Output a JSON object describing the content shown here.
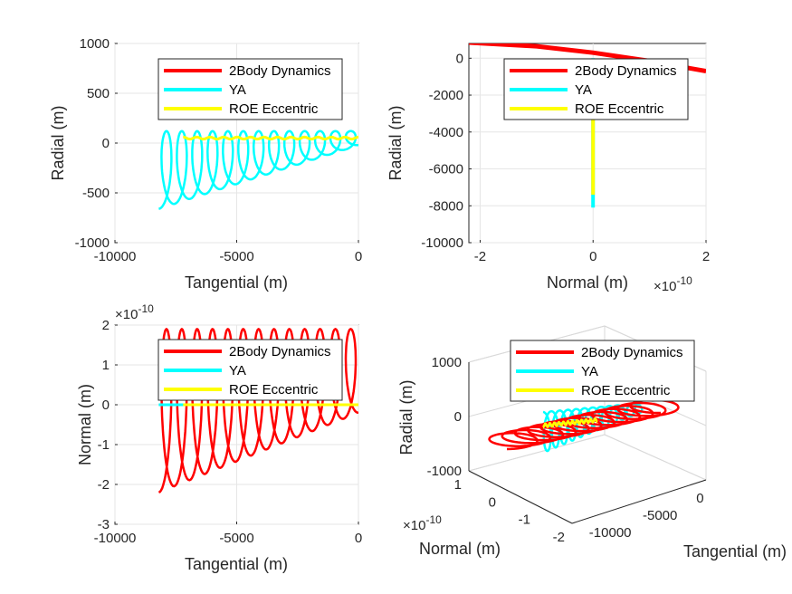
{
  "legend_entries": [
    {
      "name": "2Body Dynamics",
      "color": "#ff0000"
    },
    {
      "name": "YA",
      "color": "#00ffff"
    },
    {
      "name": "ROE Eccentric",
      "color": "#ffff00"
    }
  ],
  "chart_data": [
    {
      "type": "line",
      "panel": "top-left",
      "xlabel": "Tangential (m)",
      "ylabel": "Radial (m)",
      "xlim": [
        -10000,
        0
      ],
      "ylim": [
        -1000,
        1000
      ],
      "xticks": [
        -10000,
        -5000,
        0
      ],
      "xtick_labels": [
        "-10000",
        "-5000",
        "0"
      ],
      "yticks": [
        -1000,
        -500,
        0,
        500,
        1000
      ],
      "ytick_labels": [
        "-1000",
        "-500",
        "0",
        "500",
        "1000"
      ],
      "grid": true,
      "legend_placement": "top-right",
      "series": [
        {
          "name": "YA",
          "x_start": -8200,
          "x_end": 0,
          "loops": 13,
          "trough_start": -660,
          "trough_end": -20,
          "crest": 120
        },
        {
          "name": "ROE Eccentric",
          "x_start": -7200,
          "x_end": 0,
          "loops": 13,
          "y_center": 50,
          "y_amplitude": 10
        }
      ]
    },
    {
      "type": "line",
      "panel": "top-right",
      "xlabel": "Normal (m)",
      "ylabel": "Radial (m)",
      "xlim": [
        -2.2e-10,
        2e-10
      ],
      "ylim": [
        -10000,
        800
      ],
      "x_exponent_label": "×10",
      "x_exponent": "-10",
      "xticks": [
        -2,
        0,
        2
      ],
      "xtick_labels": [
        "-2",
        "0",
        "2"
      ],
      "yticks": [
        -10000,
        -8000,
        -6000,
        -4000,
        -2000,
        0
      ],
      "ytick_labels": [
        "-10000",
        "-8000",
        "-6000",
        "-4000",
        "-2000",
        "0"
      ],
      "grid": true,
      "legend_placement": "top-right",
      "series": [
        {
          "name": "2Body Dynamics",
          "x": [
            -2.2e-10,
            -1e-10,
            0,
            1e-10,
            2e-10
          ],
          "y": [
            850,
            650,
            300,
            -150,
            -700
          ]
        },
        {
          "name": "YA",
          "x": [
            0,
            0
          ],
          "y": [
            0,
            -8100
          ]
        },
        {
          "name": "ROE Eccentric",
          "x": [
            0,
            0
          ],
          "y": [
            -3000,
            -7400
          ]
        }
      ]
    },
    {
      "type": "line",
      "panel": "bottom-left",
      "xlabel": "Tangential (m)",
      "ylabel": "Normal (m)",
      "xlim": [
        -10000,
        0
      ],
      "ylim": [
        -3e-10,
        2e-10
      ],
      "y_exponent_label": "×10",
      "y_exponent": "-10",
      "xticks": [
        -10000,
        -5000,
        0
      ],
      "xtick_labels": [
        "-10000",
        "-5000",
        "0"
      ],
      "yticks": [
        -3,
        -2,
        -1,
        0,
        1,
        2
      ],
      "ytick_labels": [
        "-3",
        "-2",
        "-1",
        "0",
        "1",
        "2"
      ],
      "grid": true,
      "legend_placement": "top-right",
      "series": [
        {
          "name": "2Body Dynamics",
          "x_start": -8200,
          "x_end": 0,
          "loops": 13,
          "trough_start": -2.2,
          "trough_end": -0.2,
          "crest": 1.9
        },
        {
          "name": "YA",
          "x": [
            -8200,
            0
          ],
          "y": [
            0,
            0
          ]
        },
        {
          "name": "ROE Eccentric",
          "x": [
            -7200,
            0
          ],
          "y": [
            0,
            0
          ]
        }
      ]
    },
    {
      "type": "line",
      "panel": "bottom-right-3d",
      "xlabel": "Normal (m)",
      "ylabel": "Tangential (m)",
      "zlabel": "Radial (m)",
      "x_exponent_label": "×10",
      "x_exponent": "-10",
      "xticks": [
        -2,
        -1,
        0,
        1
      ],
      "xtick_labels": [
        "-2",
        "-1",
        "0",
        "1"
      ],
      "yticks": [
        -10000,
        -5000,
        0
      ],
      "ytick_labels": [
        "-10000",
        "-5000",
        "0"
      ],
      "zticks": [
        -1000,
        0,
        1000
      ],
      "ztick_labels": [
        "-1000",
        "0",
        "1000"
      ],
      "grid": true,
      "legend_placement": "top-right",
      "series": [
        {
          "name": "2Body Dynamics"
        },
        {
          "name": "YA"
        },
        {
          "name": "ROE Eccentric"
        }
      ]
    }
  ]
}
